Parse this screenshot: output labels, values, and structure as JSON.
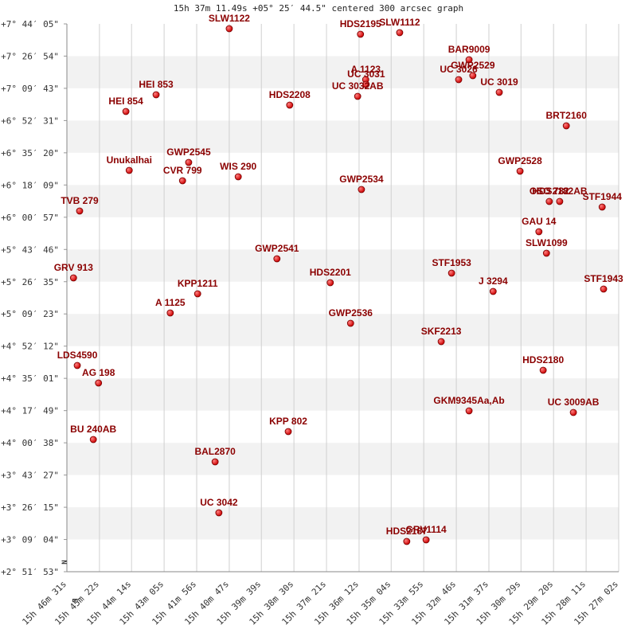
{
  "chart_data": {
    "type": "scatter",
    "title": "15h 37m 11.49s +05° 25′ 44.5\" centered 300 arcsec graph",
    "annotations": [
      "N",
      "E"
    ],
    "color": "#cc0000",
    "label_color": "#8b0000",
    "xlim": [
      56791,
      55622
    ],
    "ylim": [
      10313,
      27845
    ],
    "xticks": [
      {
        "value": 56791,
        "label": "15h 46m 31s"
      },
      {
        "value": 56722,
        "label": "15h 45m 22s"
      },
      {
        "value": 56654,
        "label": "15h 44m 14s"
      },
      {
        "value": 56585,
        "label": "15h 43m 05s"
      },
      {
        "value": 56516,
        "label": "15h 41m 56s"
      },
      {
        "value": 56447,
        "label": "15h 40m 47s"
      },
      {
        "value": 56379,
        "label": "15h 39m 39s"
      },
      {
        "value": 56310,
        "label": "15h 38m 30s"
      },
      {
        "value": 56241,
        "label": "15h 37m 21s"
      },
      {
        "value": 56172,
        "label": "15h 36m 12s"
      },
      {
        "value": 56104,
        "label": "15h 35m 04s"
      },
      {
        "value": 56035,
        "label": "15h 33m 55s"
      },
      {
        "value": 55966,
        "label": "15h 32m 46s"
      },
      {
        "value": 55897,
        "label": "15h 31m 37s"
      },
      {
        "value": 55829,
        "label": "15h 30m 29s"
      },
      {
        "value": 55760,
        "label": "15h 29m 20s"
      },
      {
        "value": 55691,
        "label": "15h 28m 11s"
      },
      {
        "value": 55622,
        "label": "15h 27m 02s"
      }
    ],
    "yticks": [
      {
        "value": 10313,
        "label": "+2° 51′ 53\""
      },
      {
        "value": 11344,
        "label": "+3° 09′ 04\""
      },
      {
        "value": 12375,
        "label": "+3° 26′ 15\""
      },
      {
        "value": 13407,
        "label": "+3° 43′ 27\""
      },
      {
        "value": 14438,
        "label": "+4° 00′ 38\""
      },
      {
        "value": 15469,
        "label": "+4° 17′ 49\""
      },
      {
        "value": 16501,
        "label": "+4° 35′ 01\""
      },
      {
        "value": 17532,
        "label": "+4° 52′ 12\""
      },
      {
        "value": 18563,
        "label": "+5° 09′ 23\""
      },
      {
        "value": 19595,
        "label": "+5° 26′ 35\""
      },
      {
        "value": 20626,
        "label": "+5° 43′ 46\""
      },
      {
        "value": 21657,
        "label": "+6° 00′ 57\""
      },
      {
        "value": 22689,
        "label": "+6° 18′ 09\""
      },
      {
        "value": 23720,
        "label": "+6° 35′ 20\""
      },
      {
        "value": 24751,
        "label": "+6° 52′ 31\""
      },
      {
        "value": 25783,
        "label": "+7° 09′ 43\""
      },
      {
        "value": 26814,
        "label": "+7° 26′ 54\""
      },
      {
        "value": 27845,
        "label": "+7° 44′ 05\""
      }
    ],
    "labels": [
      "SLW1122",
      "HDS2195",
      "SLW1112",
      "BAR9009",
      "GWP2529",
      "UC 3026",
      "UC 3019",
      "A  1123",
      "UC 3031",
      "UC 3032AB",
      "HEI 853",
      "HEI 854",
      "HDS2208",
      "BRT2160",
      "GWP2545",
      "Unukalhai",
      "CVR 799",
      "WIS 290",
      "GWP2528",
      "GWP2534",
      "OSO 782",
      "HDS2182AB",
      "STF1944",
      "TVB 279",
      "GAU  14",
      "SLW1099",
      "GWP2541",
      "GRV 913",
      "STF1953",
      "HDS2201",
      "J  3294",
      "STF1943",
      "KPP1211",
      "A  1125",
      "GWP2536",
      "SKF2213",
      "LDS4590",
      "HDS2180",
      "AG  198",
      "GKM9345Aa,Ab",
      "UC 3009AB",
      "KPP 802",
      "BU  240AB",
      "BAL2870",
      "UC 3042",
      "HDS2187",
      "GRV1114"
    ],
    "x": [
      56447,
      56169,
      56086,
      55939,
      55931,
      55961,
      55875,
      56158,
      56157,
      56175,
      56602,
      56666,
      56319,
      55733,
      56533,
      56659,
      56546,
      56428,
      55831,
      56167,
      55769,
      55747,
      55657,
      56764,
      55791,
      55775,
      56346,
      56777,
      55976,
      56233,
      55888,
      55654,
      56514,
      56572,
      56190,
      55998,
      56769,
      55782,
      56724,
      55939,
      55718,
      56322,
      56735,
      56477,
      56469,
      56071,
      56030
    ],
    "y": [
      27692,
      27514,
      27565,
      26699,
      26189,
      26062,
      25654,
      26062,
      25909,
      25526,
      25577,
      25042,
      25246,
      24583,
      23411,
      23156,
      22825,
      22953,
      23131,
      22545,
      22163,
      22163,
      21984,
      21857,
      21194,
      20506,
      20328,
      19716,
      19869,
      19563,
      19283,
      19359,
      19207,
      18595,
      18264,
      17678,
      16913,
      16760,
      16352,
      15461,
      15410,
      14798,
      14543,
      13830,
      12199,
      11281,
      11332
    ]
  }
}
